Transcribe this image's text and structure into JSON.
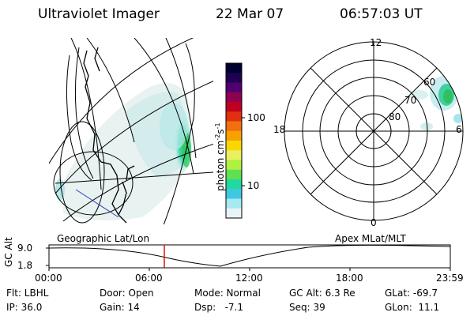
{
  "header": {
    "title": "Ultraviolet Imager",
    "date": "22 Mar 07",
    "time": "06:57:03 UT"
  },
  "colorbar": {
    "label": "photon cm",
    "label_exp1": "-2",
    "label_s": "s",
    "label_exp2": "-1",
    "ticks": [
      "100",
      "10"
    ],
    "colors": [
      "#000030",
      "#200050",
      "#500070",
      "#900050",
      "#c00020",
      "#e03010",
      "#f07010",
      "#f8a000",
      "#f8d800",
      "#e8f060",
      "#b0f040",
      "#60e050",
      "#20d8a0",
      "#40c8e0",
      "#a8e8f0",
      "#e8f4f8"
    ]
  },
  "geo_map": {
    "label": "Geographic Lat/Lon"
  },
  "polar_plot": {
    "label": "Apex MLat/MLT",
    "mlt_labels": [
      "12",
      "18",
      "6",
      "0"
    ],
    "lat_labels": [
      "60",
      "70",
      "80"
    ]
  },
  "timeline": {
    "ylabel": "GC Alt",
    "yticks": [
      "9.0",
      "1.8"
    ],
    "xticks": [
      "00:00",
      "06:00",
      "12:00",
      "18:00",
      "23:59"
    ],
    "cursor_time": "06:57"
  },
  "info": {
    "row1": [
      "Flt: LBHL",
      "Door: Open",
      "Mode: Normal",
      "GC Alt: 6.3 Re",
      "GLat: -69.7"
    ],
    "row2": [
      "IP: 36.0",
      "Gain: 14",
      "Dsp:   -7.1",
      "Seq: 39",
      "GLon:  11.1"
    ]
  }
}
